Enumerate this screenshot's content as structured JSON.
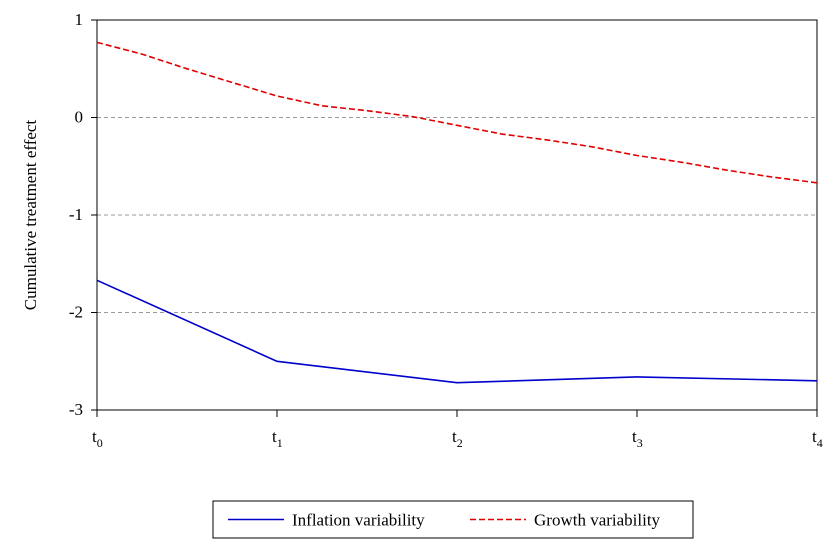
{
  "chart_data": {
    "type": "line",
    "title": "",
    "xlabel": "",
    "ylabel": "Cumulative treatment effect",
    "categories": [
      {
        "base": "t",
        "sub": "0"
      },
      {
        "base": "t",
        "sub": "1"
      },
      {
        "base": "t",
        "sub": "2"
      },
      {
        "base": "t",
        "sub": "3"
      },
      {
        "base": "t",
        "sub": "4"
      }
    ],
    "ylim": [
      -3,
      1
    ],
    "yticks": [
      "1",
      "0",
      "-1",
      "-2",
      "-3"
    ],
    "grid": "horizontal dashed at -2, -1, 0",
    "legend_position": "bottom",
    "series": [
      {
        "name": "Inflation variability",
        "color": "#0000cc",
        "style": "solid",
        "x": [
          0,
          1,
          2,
          3,
          4
        ],
        "values": [
          -1.67,
          -2.5,
          -2.72,
          -2.66,
          -2.7
        ]
      },
      {
        "name": "Growth variability",
        "color": "#e00000",
        "style": "dashed",
        "x": [
          0,
          0.25,
          0.5,
          0.75,
          1,
          1.25,
          1.5,
          1.75,
          2,
          2.25,
          2.5,
          2.75,
          3,
          3.25,
          3.5,
          3.75,
          4
        ],
        "values": [
          0.77,
          0.65,
          0.5,
          0.36,
          0.22,
          0.12,
          0.07,
          0.01,
          -0.08,
          -0.17,
          -0.23,
          -0.3,
          -0.39,
          -0.46,
          -0.54,
          -0.61,
          -0.67
        ]
      }
    ]
  }
}
